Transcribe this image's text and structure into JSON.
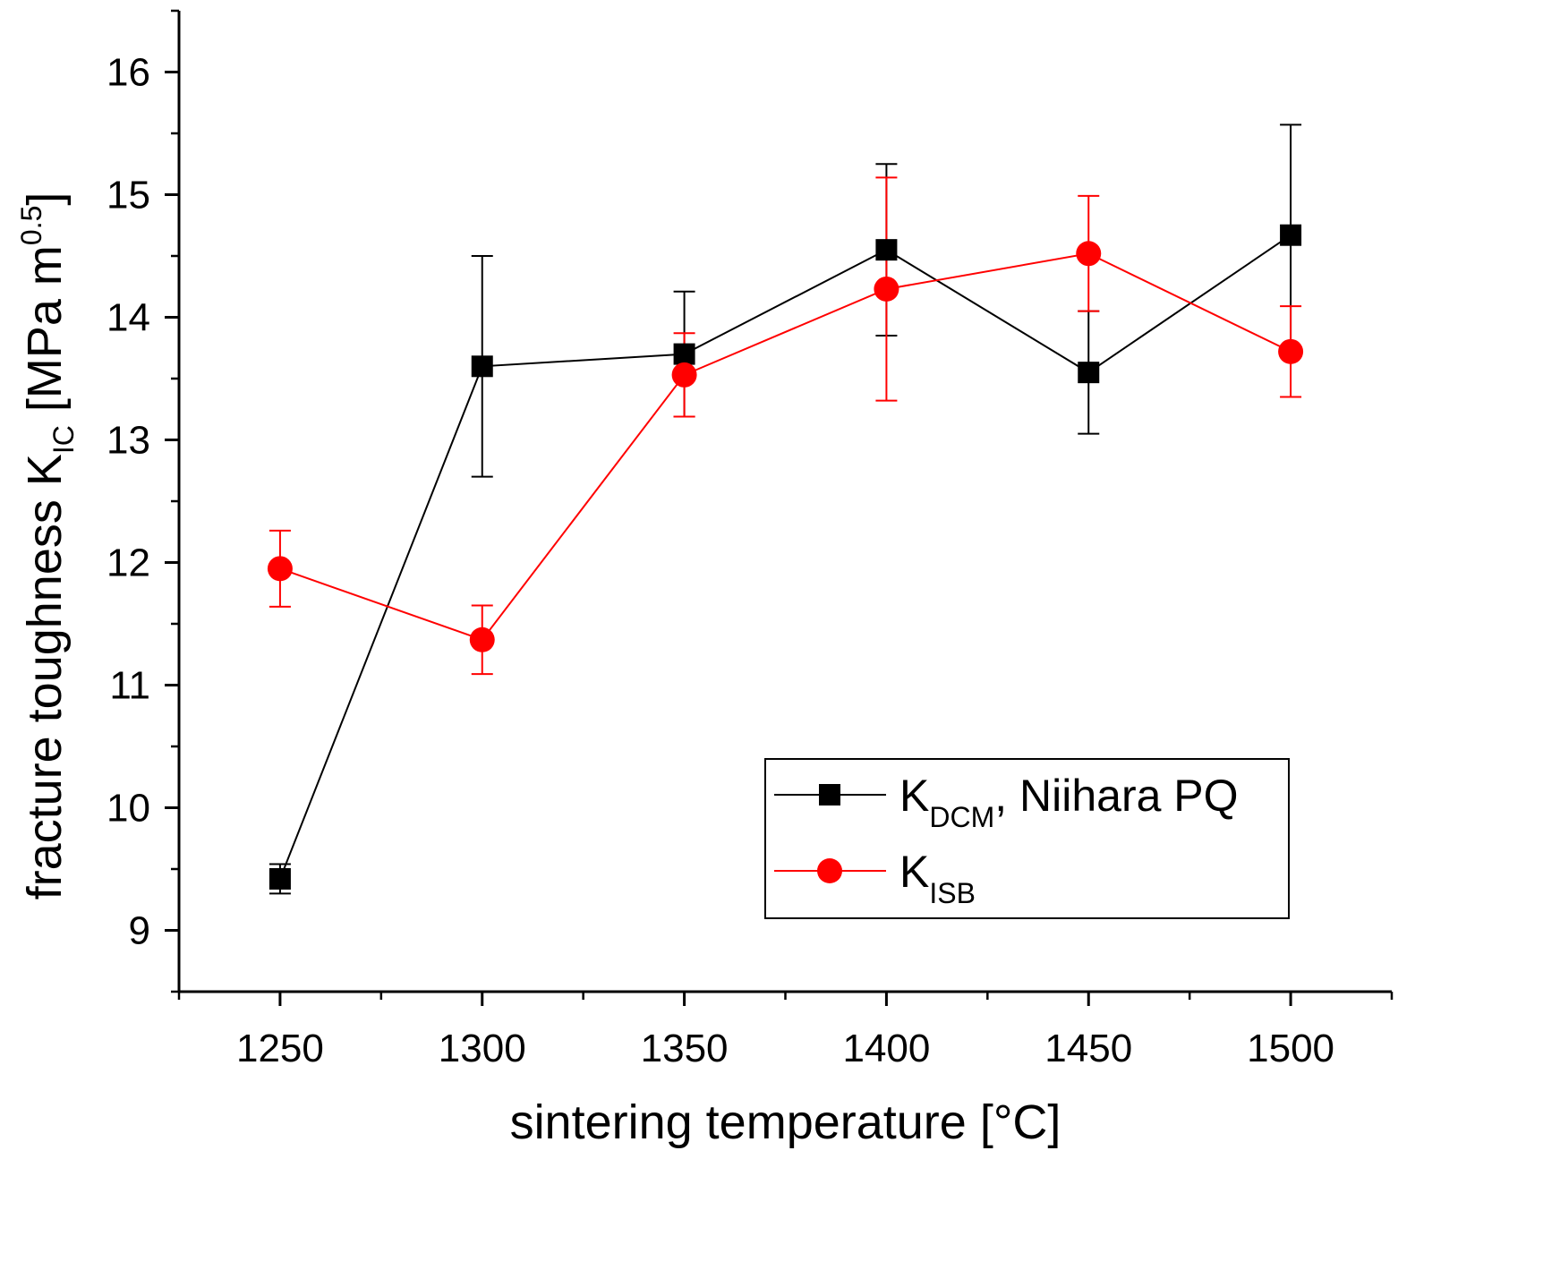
{
  "chart_data": {
    "type": "line",
    "xlabel": "sintering temperature [°C]",
    "ylabel": {
      "main": "fracture toughness K",
      "sub": "IC",
      "unit_open": " [MPa m",
      "unit_sup": "0.5",
      "unit_close": "]"
    },
    "xlim": [
      1225,
      1525
    ],
    "ylim": [
      8.5,
      16.5
    ],
    "xticks": [
      1250,
      1300,
      1350,
      1400,
      1450,
      1500
    ],
    "yticks": [
      9,
      10,
      11,
      12,
      13,
      14,
      15,
      16
    ],
    "grid": false,
    "legend_position": "bottom-right",
    "series": [
      {
        "name": "K_DCM, Niihara PQ",
        "legend_main": "K",
        "legend_sub": "DCM",
        "legend_rest": ", Niihara PQ",
        "color": "#000000",
        "marker": "square",
        "x": [
          1250,
          1300,
          1350,
          1400,
          1450,
          1500
        ],
        "y": [
          9.42,
          13.6,
          13.7,
          14.55,
          13.55,
          14.67
        ],
        "err_low": [
          9.3,
          12.7,
          13.19,
          13.85,
          13.05,
          13.75
        ],
        "err_high": [
          9.54,
          14.5,
          14.21,
          15.25,
          14.05,
          15.57
        ]
      },
      {
        "name": "K_ISB",
        "legend_main": "K",
        "legend_sub": "ISB",
        "legend_rest": "",
        "color": "#ff0000",
        "marker": "circle",
        "x": [
          1250,
          1300,
          1350,
          1400,
          1450,
          1500
        ],
        "y": [
          11.95,
          11.37,
          13.53,
          14.23,
          14.52,
          13.72
        ],
        "err_low": [
          11.64,
          11.09,
          13.19,
          13.32,
          14.05,
          13.35
        ],
        "err_high": [
          12.26,
          11.65,
          13.87,
          15.14,
          14.99,
          14.09
        ]
      }
    ]
  }
}
